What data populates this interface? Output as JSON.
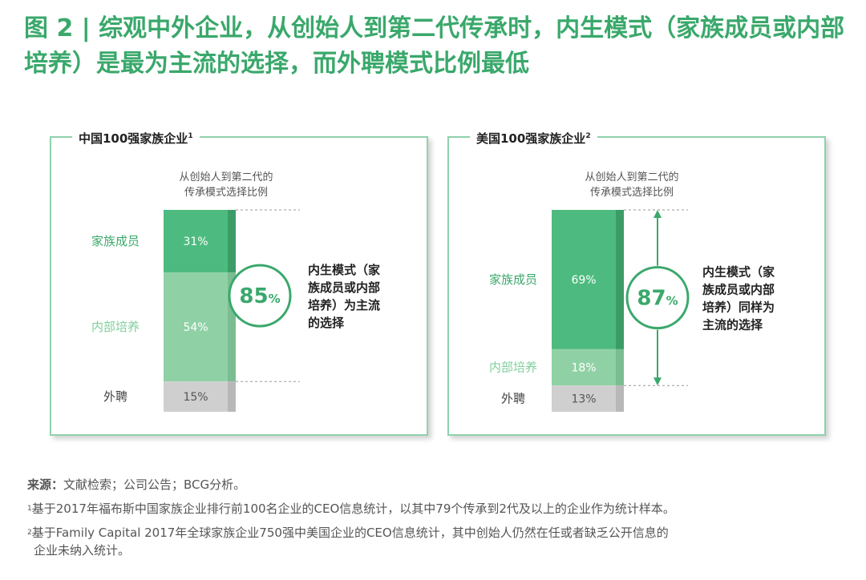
{
  "title": "图 2 | 综观中外企业，从创始人到第二代传承时，内生模式（家族成员或内部培养）是最为主流的选择，而外聘模式比例最低",
  "colors": {
    "accent": "#3aa86b",
    "family": "#4dbb7f",
    "internal": "#8fd1a5",
    "external": "#cfcfcf"
  },
  "chart_data": [
    {
      "type": "bar",
      "panel_title": "中国100强家族企业",
      "panel_title_sup": "1",
      "subtitle_lines": [
        "从创始人到第二代的",
        "传承模式选择比例"
      ],
      "categories": [
        "家族成员",
        "内部培养",
        "外聘"
      ],
      "values": [
        31,
        54,
        15
      ],
      "value_labels": [
        "31%",
        "54%",
        "15%"
      ],
      "highlight_value": "85",
      "highlight_unit": "%",
      "annotation_lines": [
        "内生模式（家",
        "族成员或内部",
        "培养）为主流",
        "的选择"
      ]
    },
    {
      "type": "bar",
      "panel_title": "美国100强家族企业",
      "panel_title_sup": "2",
      "subtitle_lines": [
        "从创始人到第二代的",
        "传承模式选择比例"
      ],
      "categories": [
        "家族成员",
        "内部培养",
        "外聘"
      ],
      "values": [
        69,
        18,
        13
      ],
      "value_labels": [
        "69%",
        "18%",
        "13%"
      ],
      "highlight_value": "87",
      "highlight_unit": "%",
      "annotation_lines": [
        "内生模式（家",
        "族成员或内部",
        "培养）同样为",
        "主流的选择"
      ]
    }
  ],
  "footnotes": {
    "source_label": "来源：",
    "source_text": "文献检索；公司公告；BCG分析。",
    "note1_sup": "1",
    "note1": "基于2017年福布斯中国家族企业排行前100名企业的CEO信息统计，以其中79个传承到2代及以上的企业作为统计样本。",
    "note2_sup": "2",
    "note2_line1": "基于Family Capital 2017年全球家族企业750强中美国企业的CEO信息统计，其中创始人仍然在任或者缺乏公开信息的",
    "note2_line2": "企业未纳入统计。"
  }
}
